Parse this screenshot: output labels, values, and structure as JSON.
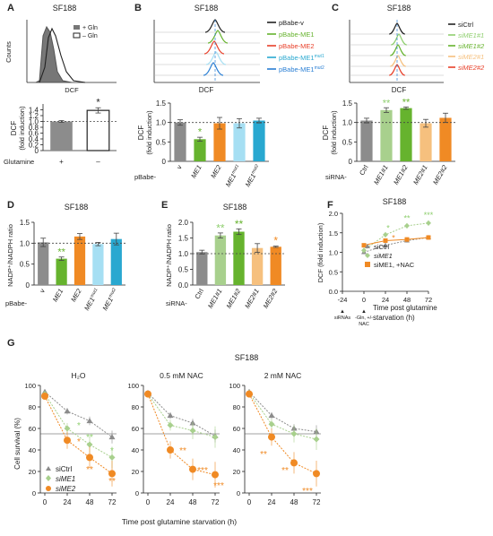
{
  "colors": {
    "grey": "#8c8c8c",
    "green": "#66b32e",
    "lightgreen": "#a8d08d",
    "lightgreen_text": "#8fcf6f",
    "orange": "#f08a24",
    "lightorange": "#f6c07e",
    "cyan": "#a6dff3",
    "teal": "#29a8d0",
    "red": "#e8402a",
    "blue": "#2a7fd4",
    "text": "#222222"
  },
  "panels": {
    "A": {
      "letter": "A",
      "title": "SF188",
      "legend": [
        "+ Gln",
        "– Gln"
      ],
      "xlabel": "DCF",
      "ylabel": "Counts",
      "bar_ylabel": "DCF",
      "bar_ylabel2": "(fold induction)",
      "row_label": "Glutamine",
      "signs": [
        "+",
        "–"
      ],
      "star": "*"
    },
    "B": {
      "letter": "B",
      "title": "SF188",
      "xlabel": "DCF",
      "legend": [
        "pBabe-v",
        "pBabe-ME1",
        "pBabe-ME2",
        "pBabe-ME1mut1",
        "pBabe-ME1mut2"
      ],
      "legend_main": [
        "pBabe-v",
        "pBabe-ME1",
        "pBabe-ME2",
        "pBabe-ME1",
        "pBabe-ME1"
      ],
      "legend_sup": [
        "",
        "",
        "",
        "mut1",
        "mut2"
      ],
      "bar_ylabel": "DCF",
      "bar_ylabel2": "(fold induction)",
      "row_label": "pBabe-",
      "tick_main": [
        "v",
        "ME1",
        "ME2",
        "ME1",
        "ME1"
      ],
      "tick_sup": [
        "",
        "",
        "",
        "mut1",
        "mut2"
      ],
      "star": "*"
    },
    "C": {
      "letter": "C",
      "title": "SF188",
      "xlabel": "DCF",
      "legend": [
        "siCtrl",
        "siME1#1",
        "siME1#2",
        "siME2#1",
        "siME2#2"
      ],
      "bar_ylabel": "DCF",
      "bar_ylabel2": "(fold induction)",
      "row_label": "siRNA-",
      "ticks": [
        "Ctrl",
        "ME1#1",
        "ME1#2",
        "ME2#1",
        "ME2#2"
      ],
      "stars": [
        "**",
        "**"
      ]
    },
    "D": {
      "letter": "D",
      "title": "SF188",
      "ylabel": "NADP⁺/NADPH ratio",
      "row_label": "pBabe-",
      "tick_main": [
        "v",
        "ME1",
        "ME2",
        "ME1",
        "ME1"
      ],
      "tick_sup": [
        "",
        "",
        "",
        "mut1",
        "mut2"
      ],
      "star": "**"
    },
    "E": {
      "letter": "E",
      "title": "SF188",
      "ylabel": "NADP⁺/NADPH ratio",
      "row_label": "siRNA-",
      "ticks": [
        "Ctrl",
        "ME1#1",
        "ME1#2",
        "ME2#1",
        "ME2#2"
      ],
      "stars": [
        "**",
        "**",
        "*"
      ]
    },
    "F": {
      "letter": "F",
      "title": "SF188",
      "ylabel": "DCF (fold induction)",
      "xlabel": "Time post glutamine",
      "xlabel2": "starvation (h)",
      "legend": [
        "siCtrl",
        "siME1",
        "siME1, +NAC"
      ],
      "note_sirna": "siRNAs",
      "note_gln": "-Gln, +/-",
      "note_nac": "NAC",
      "stars": [
        "*",
        "**",
        "***",
        "*"
      ]
    },
    "G": {
      "letter": "G",
      "title": "SF188",
      "subtitles": [
        "H₂O",
        "0.5 mM NAC",
        "2 mM NAC"
      ],
      "ylabel": "Cell survival (%)",
      "xlabel": "Time post glutamine starvation (h)",
      "legend": [
        "siCtrl",
        "siME1",
        "siME2"
      ]
    }
  },
  "chart_data": [
    {
      "panel": "A",
      "type": "bar",
      "categories": [
        "+",
        "–"
      ],
      "values": [
        1.0,
        1.38
      ],
      "errors": [
        0.03,
        0.09
      ],
      "ylim": [
        0,
        1.6
      ],
      "yticks": [
        0,
        0.2,
        0.4,
        0.6,
        0.8,
        1.0,
        1.2,
        1.4
      ],
      "reference_line": 1.0
    },
    {
      "panel": "B",
      "type": "bar",
      "categories": [
        "v",
        "ME1",
        "ME2",
        "ME1mut1",
        "ME1mut2"
      ],
      "values": [
        1.0,
        0.57,
        0.98,
        0.98,
        1.05
      ],
      "errors": [
        0.07,
        0.05,
        0.15,
        0.12,
        0.06
      ],
      "ylim": [
        0,
        1.5
      ],
      "yticks": [
        0,
        0.5,
        1.0,
        1.5
      ],
      "reference_line": 1.0
    },
    {
      "panel": "C",
      "type": "bar",
      "categories": [
        "Ctrl",
        "ME1#1",
        "ME1#2",
        "ME2#1",
        "ME2#2"
      ],
      "values": [
        1.05,
        1.32,
        1.37,
        0.98,
        1.12
      ],
      "errors": [
        0.06,
        0.06,
        0.03,
        0.1,
        0.12
      ],
      "ylim": [
        0,
        1.5
      ],
      "yticks": [
        0,
        0.5,
        1.0,
        1.5
      ],
      "reference_line": 1.0
    },
    {
      "panel": "D",
      "type": "bar",
      "categories": [
        "v",
        "ME1",
        "ME2",
        "ME1mut1",
        "ME1mut2"
      ],
      "values": [
        1.02,
        0.63,
        1.16,
        0.98,
        1.1
      ],
      "errors": [
        0.1,
        0.04,
        0.07,
        0.04,
        0.14
      ],
      "ylim": [
        0,
        1.5
      ],
      "yticks": [
        0,
        0.5,
        1.0,
        1.5
      ],
      "reference_line": 1.0
    },
    {
      "panel": "E",
      "type": "bar",
      "categories": [
        "Ctrl",
        "ME1#1",
        "ME1#2",
        "ME2#1",
        "ME2#2"
      ],
      "values": [
        1.05,
        1.58,
        1.7,
        1.18,
        1.22
      ],
      "errors": [
        0.06,
        0.08,
        0.09,
        0.14,
        0.02
      ],
      "ylim": [
        0,
        2.0
      ],
      "yticks": [
        0,
        0.5,
        1.0,
        1.5,
        2.0
      ],
      "reference_line": 1.0
    },
    {
      "panel": "F",
      "type": "line",
      "x": [
        0,
        24,
        48,
        72
      ],
      "xticks": [
        -24,
        0,
        24,
        48,
        72
      ],
      "ylim": [
        0,
        2.0
      ],
      "yticks": [
        0,
        0.5,
        1.0,
        1.5,
        2.0
      ],
      "series": [
        {
          "name": "siCtrl",
          "values": [
            1.0,
            1.18,
            1.3,
            1.38
          ]
        },
        {
          "name": "siME1",
          "values": [
            1.05,
            1.45,
            1.68,
            1.75
          ]
        },
        {
          "name": "siME1, +NAC",
          "values": [
            1.18,
            1.3,
            1.33,
            1.38
          ]
        }
      ]
    },
    {
      "panel": "G",
      "type": "line",
      "x": [
        0,
        24,
        48,
        72
      ],
      "ylim": [
        0,
        100
      ],
      "yticks": [
        0,
        20,
        40,
        60,
        80,
        100
      ],
      "subplots": [
        {
          "title": "H₂O",
          "series": [
            {
              "name": "siCtrl",
              "values": [
                94,
                76,
                67,
                52
              ]
            },
            {
              "name": "siME1",
              "values": [
                92,
                60,
                45,
                33
              ]
            },
            {
              "name": "siME2",
              "values": [
                90,
                49,
                33,
                18
              ]
            }
          ]
        },
        {
          "title": "0.5 mM NAC",
          "series": [
            {
              "name": "siCtrl",
              "values": [
                93,
                72,
                65,
                53
              ]
            },
            {
              "name": "siME1",
              "values": [
                92,
                63,
                58,
                52
              ]
            },
            {
              "name": "siME2",
              "values": [
                92,
                40,
                22,
                17
              ]
            }
          ]
        },
        {
          "title": "2 mM NAC",
          "series": [
            {
              "name": "siCtrl",
              "values": [
                94,
                72,
                60,
                57
              ]
            },
            {
              "name": "siME1",
              "values": [
                93,
                64,
                55,
                50
              ]
            },
            {
              "name": "siME2",
              "values": [
                92,
                52,
                28,
                18
              ]
            }
          ]
        }
      ]
    }
  ]
}
